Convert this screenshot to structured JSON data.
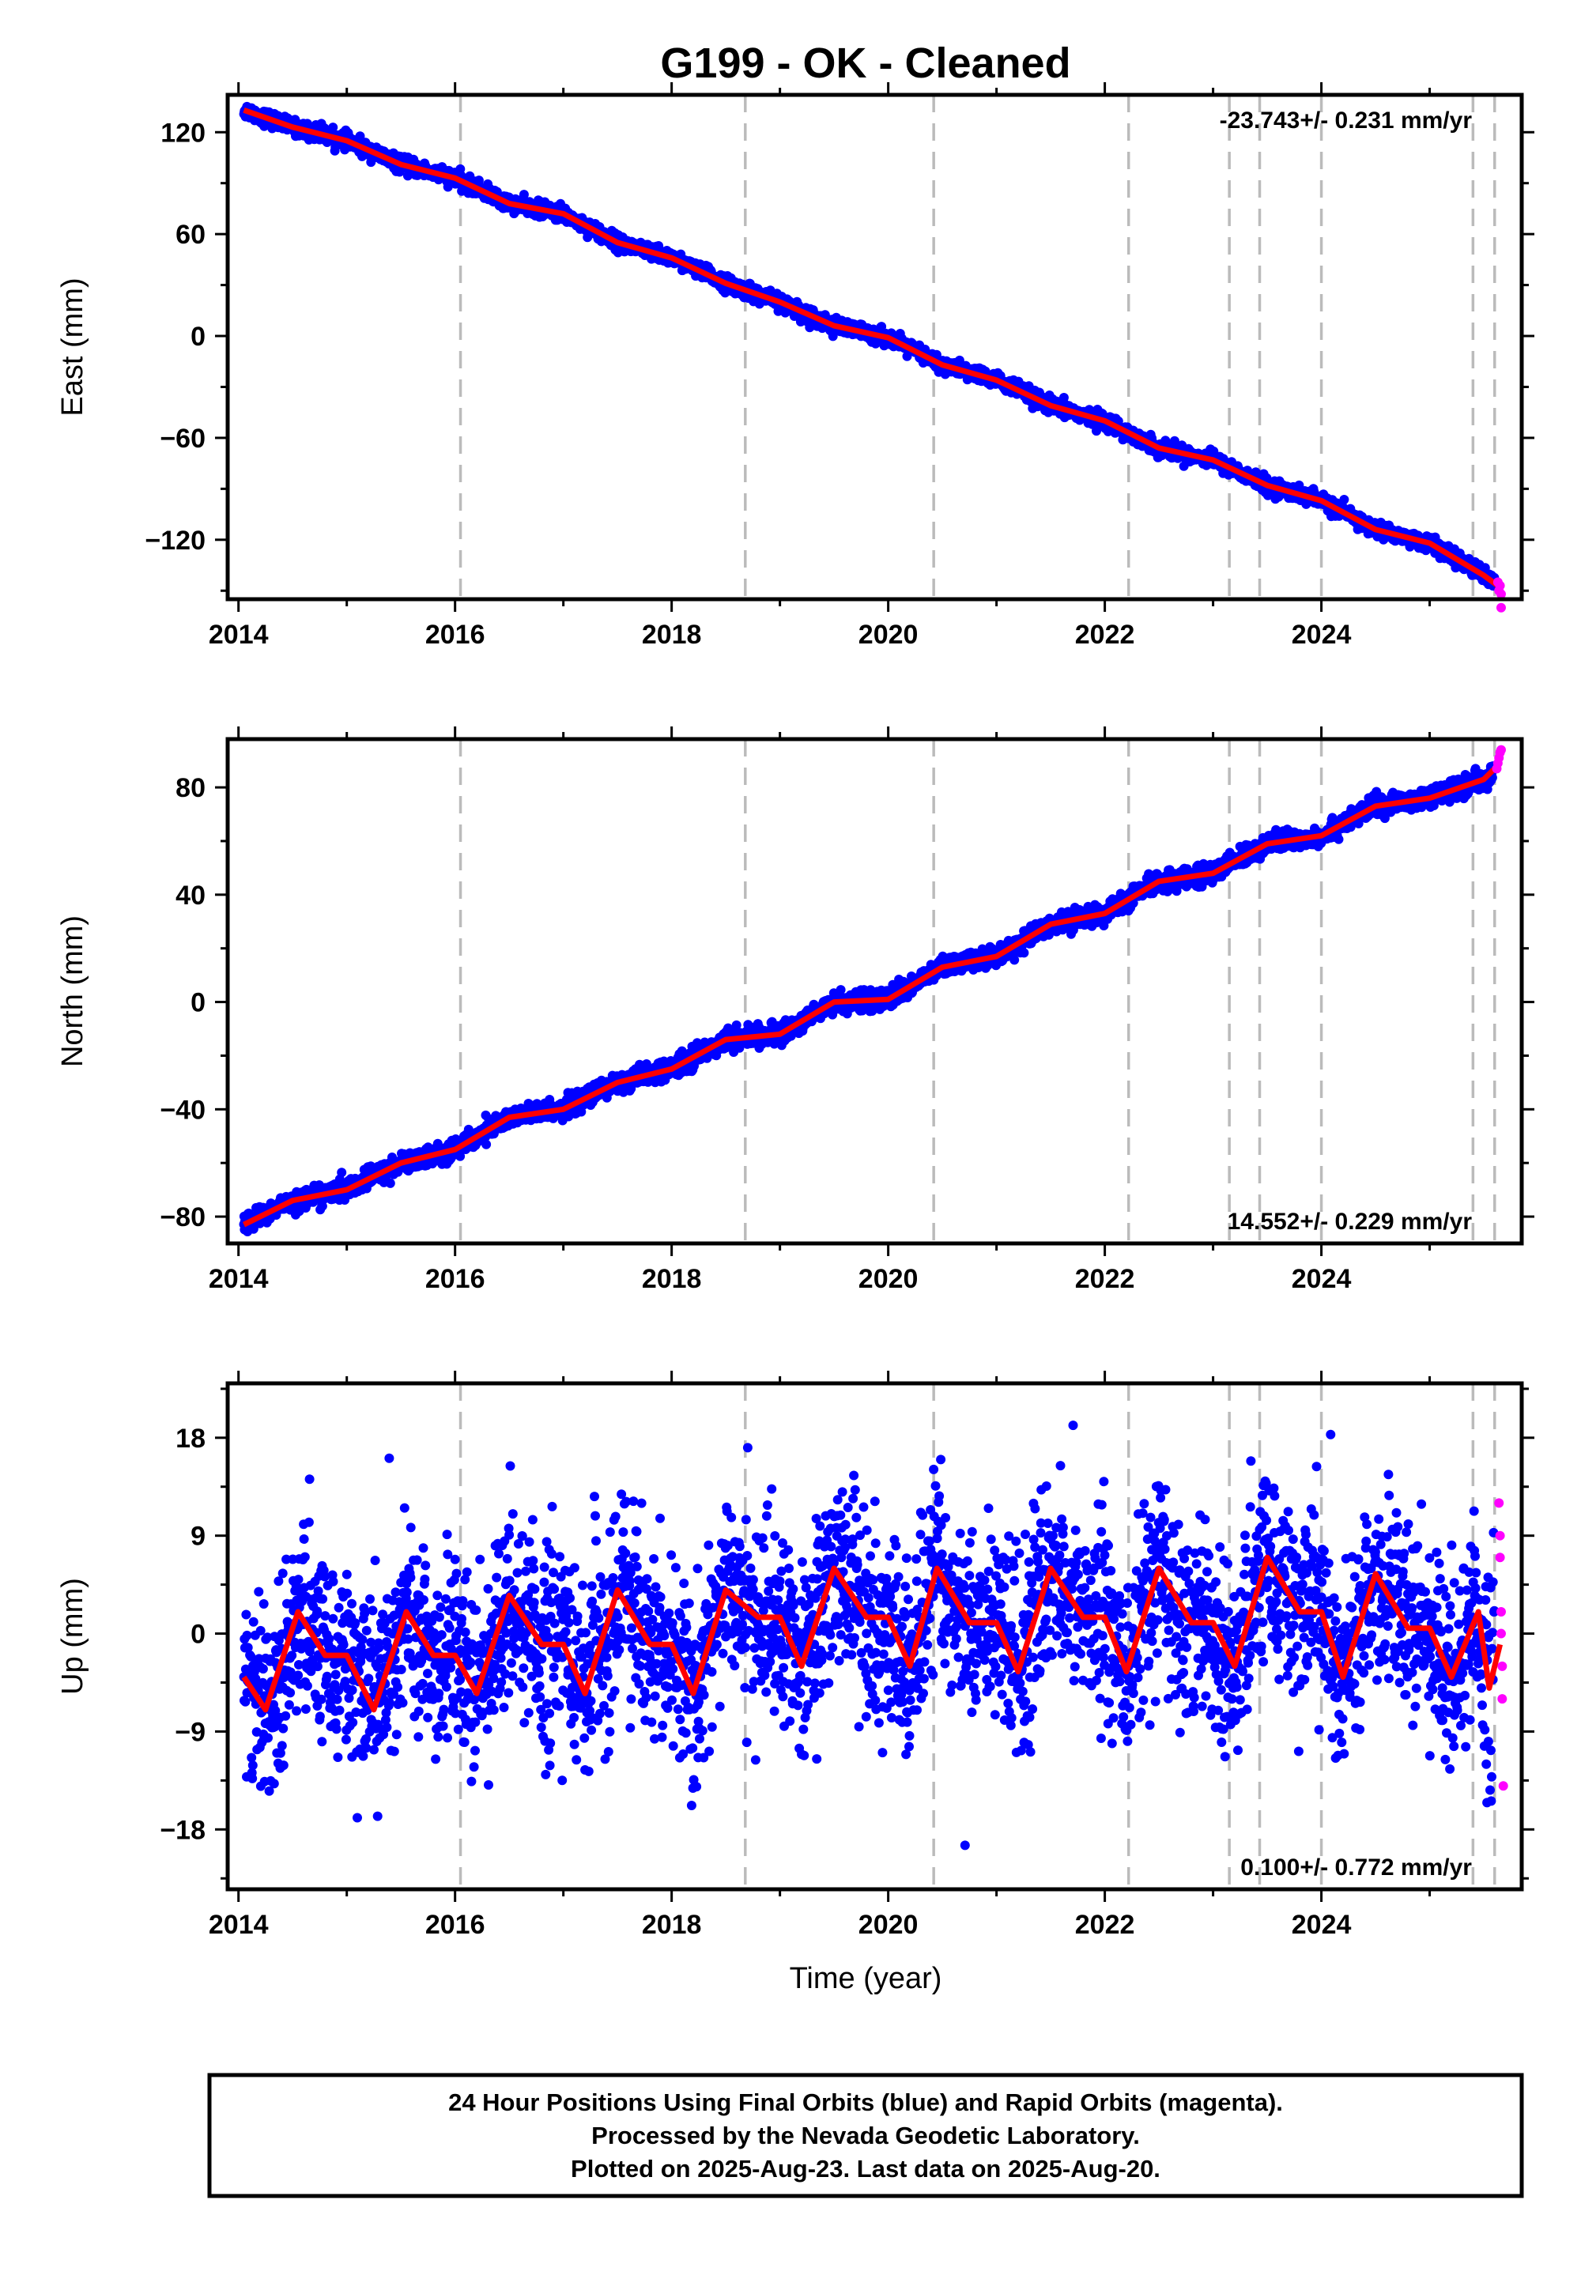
{
  "title": "G199  - OK - Cleaned",
  "xlabel": "Time (year)",
  "colors": {
    "final": "#0000ff",
    "rapid": "#ff00ff",
    "fit": "#ff0000",
    "events": "#bbbbbb"
  },
  "chart_data": [
    {
      "type": "scatter",
      "name": "east",
      "ylabel": "East (mm)",
      "rate_label": "-23.743+/- 0.231 mm/yr",
      "rate_position": "top-right",
      "xlim": [
        2013.9,
        2025.85
      ],
      "ylim": [
        -155,
        142
      ],
      "xticks": [
        2014,
        2016,
        2018,
        2020,
        2022,
        2024
      ],
      "xtick_labels": [
        "2014",
        "2016",
        "2018",
        "2020",
        "2022",
        "2024"
      ],
      "yticks": [
        -120,
        -60,
        0,
        60,
        120
      ],
      "ytick_labels": [
        "−120",
        "−60",
        "0",
        "60",
        "120"
      ],
      "event_lines": [
        2016.05,
        2018.68,
        2020.42,
        2022.22,
        2023.15,
        2023.43,
        2024.0,
        2025.4,
        2025.6
      ],
      "trend": {
        "x": [
          2014.05,
          2014.5,
          2015.0,
          2015.5,
          2016.0,
          2016.5,
          2017.0,
          2017.5,
          2018.0,
          2018.5,
          2019.0,
          2019.5,
          2020.0,
          2020.5,
          2021.0,
          2021.5,
          2022.0,
          2022.5,
          2023.0,
          2023.5,
          2024.0,
          2024.5,
          2025.0,
          2025.5,
          2025.65
        ],
        "y": [
          133,
          123,
          115,
          101,
          93,
          78,
          72,
          55,
          46,
          31,
          20,
          6,
          -1,
          -17,
          -26,
          -41,
          -50,
          -66,
          -73,
          -88,
          -97,
          -114,
          -122,
          -141,
          -148
        ]
      },
      "scatter_sd": 2.2,
      "rapid_points": {
        "x": [
          2025.63,
          2025.64,
          2025.65,
          2025.66,
          2025.66
        ],
        "y": [
          -145,
          -150,
          -147,
          -152,
          -160
        ]
      }
    },
    {
      "type": "scatter",
      "name": "north",
      "ylabel": "North (mm)",
      "rate_label": "14.552+/- 0.229 mm/yr",
      "rate_position": "bottom-right",
      "xlim": [
        2013.9,
        2025.85
      ],
      "ylim": [
        -90,
        98
      ],
      "xticks": [
        2014,
        2016,
        2018,
        2020,
        2022,
        2024
      ],
      "xtick_labels": [
        "2014",
        "2016",
        "2018",
        "2020",
        "2022",
        "2024"
      ],
      "yticks": [
        -80,
        -40,
        0,
        40,
        80
      ],
      "ytick_labels": [
        "−80",
        "−40",
        "0",
        "40",
        "80"
      ],
      "event_lines": [
        2016.05,
        2018.68,
        2020.42,
        2022.22,
        2023.15,
        2023.43,
        2024.0,
        2025.4,
        2025.6
      ],
      "trend": {
        "x": [
          2014.05,
          2014.5,
          2015.0,
          2015.5,
          2016.0,
          2016.5,
          2017.0,
          2017.5,
          2018.0,
          2018.5,
          2019.0,
          2019.5,
          2020.0,
          2020.5,
          2021.0,
          2021.5,
          2022.0,
          2022.5,
          2023.0,
          2023.5,
          2024.0,
          2024.5,
          2025.0,
          2025.5,
          2025.65
        ],
        "y": [
          -83,
          -74,
          -70,
          -60,
          -55,
          -43,
          -40,
          -30,
          -25,
          -14,
          -12,
          0,
          1,
          13,
          17,
          29,
          33,
          45,
          48,
          59,
          62,
          73,
          76,
          83,
          89
        ]
      },
      "scatter_sd": 1.8,
      "rapid_points": {
        "x": [
          2025.62,
          2025.63,
          2025.64,
          2025.65,
          2025.66
        ],
        "y": [
          87,
          89,
          91,
          93,
          94
        ]
      }
    },
    {
      "type": "scatter",
      "name": "up",
      "ylabel": "Up (mm)",
      "rate_label": "0.100+/- 0.772 mm/yr",
      "rate_position": "bottom-right",
      "xlim": [
        2013.9,
        2025.85
      ],
      "ylim": [
        -23.5,
        23
      ],
      "xticks": [
        2014,
        2016,
        2018,
        2020,
        2022,
        2024
      ],
      "xtick_labels": [
        "2014",
        "2016",
        "2018",
        "2020",
        "2022",
        "2024"
      ],
      "yticks": [
        -18,
        -9,
        0,
        9,
        18
      ],
      "ytick_labels": [
        "−18",
        "−9",
        "0",
        "9",
        "18"
      ],
      "event_lines": [
        2016.05,
        2018.68,
        2020.42,
        2022.22,
        2023.15,
        2023.43,
        2024.0,
        2025.4,
        2025.6
      ],
      "trend": {
        "x": [
          2014.05,
          2014.25,
          2014.55,
          2014.8,
          2015.0,
          2015.25,
          2015.55,
          2015.8,
          2016.0,
          2016.2,
          2016.5,
          2016.8,
          2017.0,
          2017.2,
          2017.5,
          2017.8,
          2018.0,
          2018.2,
          2018.5,
          2018.8,
          2019.0,
          2019.2,
          2019.5,
          2019.8,
          2020.0,
          2020.2,
          2020.45,
          2020.75,
          2021.0,
          2021.2,
          2021.5,
          2021.8,
          2022.0,
          2022.2,
          2022.5,
          2022.8,
          2023.0,
          2023.2,
          2023.5,
          2023.8,
          2024.0,
          2024.2,
          2024.5,
          2024.8,
          2025.0,
          2025.2,
          2025.45,
          2025.55,
          2025.65
        ],
        "y": [
          -4,
          -7,
          2,
          -2,
          -2,
          -7,
          2,
          -2,
          -2,
          -5.5,
          3.5,
          -1,
          -1,
          -5.5,
          4,
          -1,
          -1,
          -5.5,
          4,
          1.5,
          1.5,
          -3,
          6,
          1.5,
          1.5,
          -3,
          6,
          1,
          1,
          -3.5,
          6,
          1.5,
          1.5,
          -3.5,
          6,
          1,
          1,
          -3,
          7,
          2,
          2,
          -4,
          5.5,
          0.5,
          0.5,
          -4,
          2,
          -5,
          -1
        ]
      },
      "scatter_sd": 4.2,
      "rapid_points": {
        "x": [
          2025.64,
          2025.65,
          2025.65,
          2025.66,
          2025.66,
          2025.67,
          2025.67,
          2025.68
        ],
        "y": [
          12,
          9,
          7,
          2,
          0,
          -3,
          -6,
          -14
        ]
      }
    }
  ],
  "footer": {
    "line1": "24 Hour Positions Using Final Orbits (blue) and Rapid Orbits (magenta).",
    "line2": "Processed by the Nevada Geodetic Laboratory.",
    "line3": "Plotted on 2025-Aug-23. Last data on 2025-Aug-20."
  }
}
